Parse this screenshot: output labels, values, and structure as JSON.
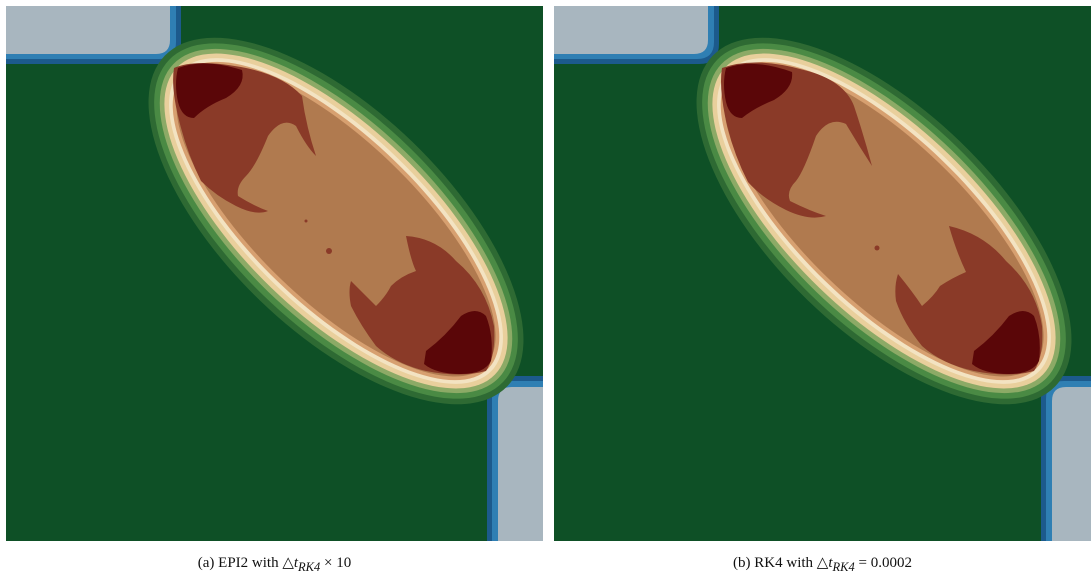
{
  "figure": {
    "panels": [
      {
        "id": "a",
        "caption_label": "(a)",
        "caption_text_before": "EPI2 with △",
        "caption_symbol": "t",
        "caption_subscript": "RK4",
        "caption_text_after": " × 10"
      },
      {
        "id": "b",
        "caption_label": "(b)",
        "caption_text_before": "RK4 with △",
        "caption_symbol": "t",
        "caption_subscript": "RK4",
        "caption_text_after": " = 0.0002"
      }
    ],
    "colors": {
      "background_field": "#0e5026",
      "corner_fill": "#a8b6bf",
      "ellipse_outer_glow": "#3f7d3b",
      "ellipse_cream": "#e9cf9c",
      "ellipse_fill": "#b07a4f",
      "ellipse_dark": "#8a3a28",
      "ellipse_darkest": "#5a0608",
      "boundary_blue": "#1c5a8c"
    }
  }
}
